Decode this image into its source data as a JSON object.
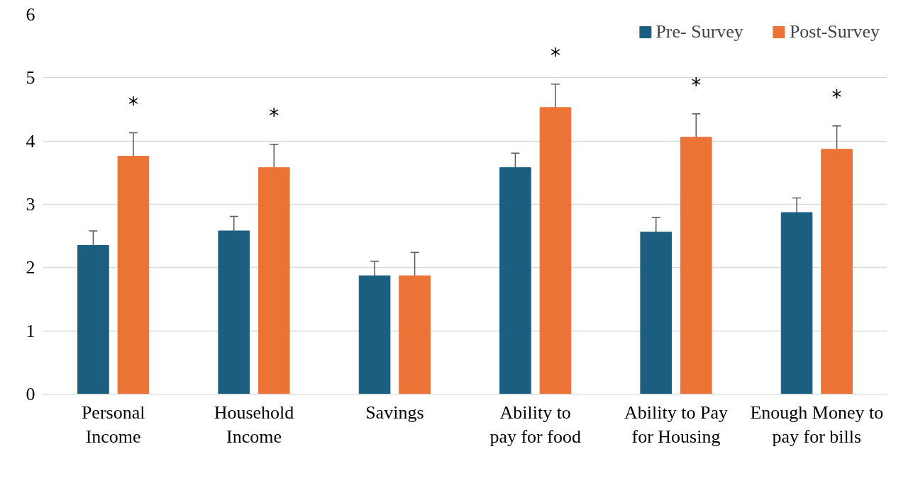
{
  "chart_data": {
    "type": "bar",
    "categories": [
      "Personal Income",
      "Household Income",
      "Savings",
      "Ability to pay for food",
      "Ability to Pay for Housing",
      "Enough Money to pay for bills"
    ],
    "series": [
      {
        "name": "Pre- Survey",
        "color": "#1b5e80",
        "values": [
          2.35,
          2.58,
          1.87,
          3.58,
          2.56,
          2.87
        ],
        "errors": [
          0.23,
          0.23,
          0.23,
          0.23,
          0.23,
          0.23
        ]
      },
      {
        "name": "Post-Survey",
        "color": "#ec7336",
        "values": [
          3.76,
          3.58,
          1.87,
          4.53,
          4.06,
          3.87
        ],
        "errors": [
          0.37,
          0.37,
          0.37,
          0.37,
          0.37,
          0.37
        ]
      }
    ],
    "ylim": [
      0,
      6
    ],
    "yticks": [
      0,
      1,
      2,
      3,
      4,
      5,
      6
    ],
    "grid": "y",
    "legend": "top right",
    "annotations": [
      "*",
      "*",
      "*",
      "*",
      "*"
    ]
  }
}
